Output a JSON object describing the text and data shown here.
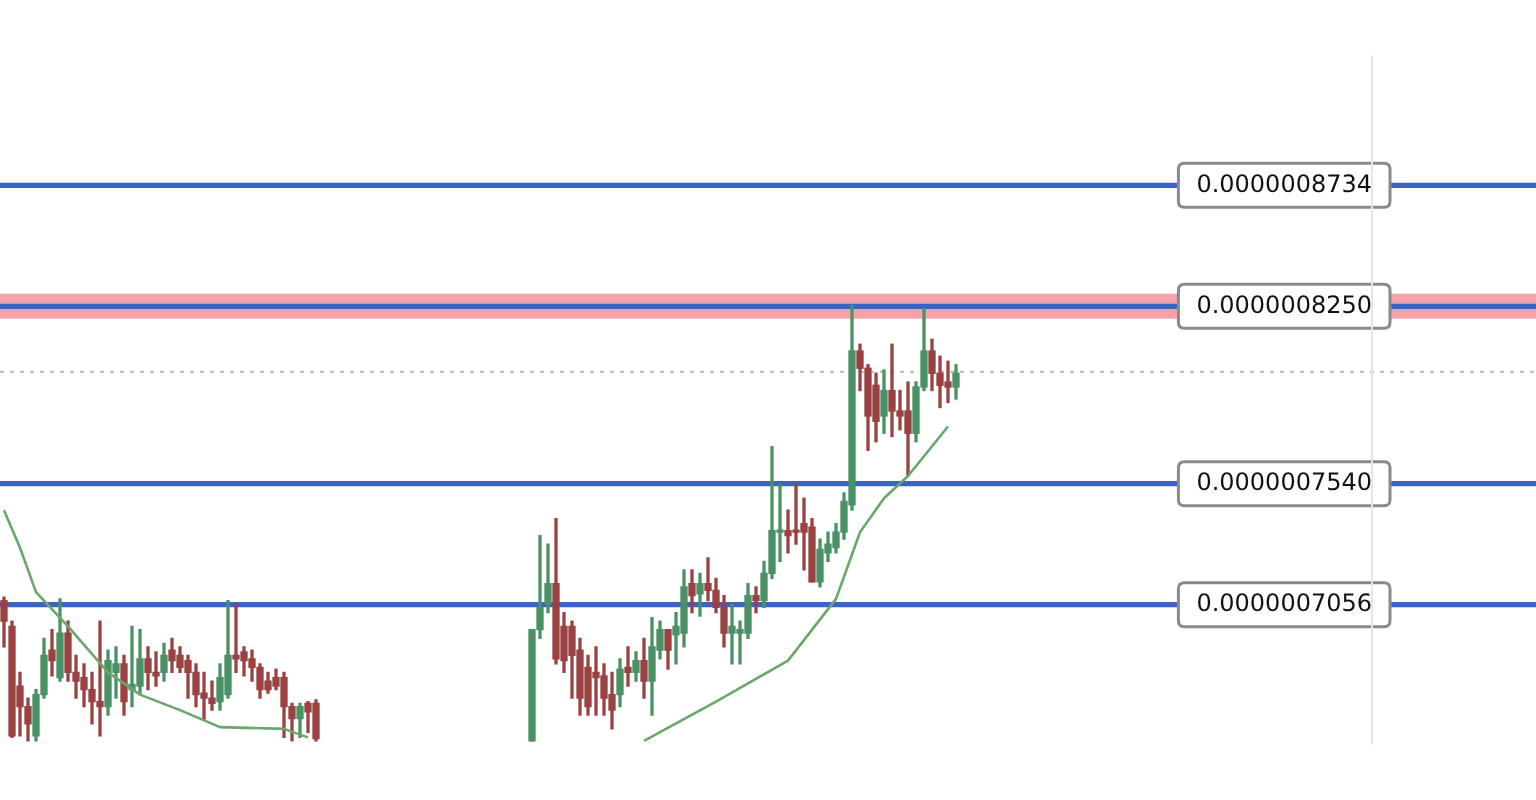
{
  "chart_data": {
    "type": "candlestick",
    "categories": [
      null,
      null,
      null,
      null,
      null,
      null,
      null,
      null,
      null,
      null,
      null,
      null,
      null,
      null,
      null,
      null,
      null,
      null,
      null,
      null,
      null,
      null,
      null,
      null,
      null,
      null,
      null,
      null,
      null,
      null,
      null,
      null,
      null,
      null,
      null,
      null,
      null,
      null,
      null,
      null,
      null,
      null,
      null,
      null,
      null,
      null,
      null,
      null,
      null,
      null,
      null,
      null,
      null,
      null,
      null,
      null,
      null,
      null,
      null,
      null,
      null,
      null,
      null,
      null,
      null,
      null,
      null,
      null,
      null,
      null,
      null,
      null,
      null,
      null,
      null,
      null,
      null,
      null,
      null,
      null,
      null,
      null,
      null,
      null,
      null,
      null,
      null,
      null,
      null,
      null,
      null,
      null,
      null,
      null,
      null,
      null,
      null,
      null,
      null,
      null,
      null,
      null,
      null,
      null,
      null,
      null,
      null,
      null,
      null,
      null,
      null,
      null,
      null,
      null,
      null,
      null,
      null,
      null,
      null,
      null,
      null,
      null,
      null,
      null,
      null,
      null,
      null,
      null,
      null,
      null,
      null,
      null,
      null,
      null,
      null,
      null,
      null,
      null,
      null,
      null,
      null,
      null,
      null,
      null,
      null,
      null,
      null,
      null,
      null,
      null,
      null,
      null,
      null,
      null,
      null,
      null,
      null,
      null,
      null,
      null,
      null,
      null,
      null,
      null,
      null,
      null,
      null,
      null,
      null,
      null,
      null,
      null,
      null,
      null,
      null,
      null,
      null,
      null,
      null,
      null,
      null,
      null,
      null,
      null,
      null,
      null,
      null,
      null,
      null,
      null,
      null,
      null
    ],
    "series": [
      {
        "type": "candlestick",
        "ohlc": [
          [
            7.072e-07,
            7.086e-07,
            6.887e-07,
            6.99e-07
          ],
          [
            6.969e-07,
            6.99e-07,
            6.525e-07,
            6.531e-07
          ],
          [
            6.73e-07,
            6.785e-07,
            6.531e-07,
            6.648e-07
          ],
          [
            6.648e-07,
            6.682e-07,
            6.511e-07,
            6.579e-07
          ],
          [
            6.531e-07,
            6.716e-07,
            6.511e-07,
            6.696e-07
          ],
          [
            6.696e-07,
            6.921e-07,
            6.682e-07,
            6.853e-07
          ],
          [
            6.874e-07,
            6.956e-07,
            6.771e-07,
            6.832e-07
          ],
          [
            6.764e-07,
            7.079e-07,
            6.75e-07,
            6.942e-07
          ],
          [
            6.942e-07,
            6.99e-07,
            6.75e-07,
            6.785e-07
          ],
          [
            6.785e-07,
            6.853e-07,
            6.682e-07,
            6.75e-07
          ],
          [
            6.764e-07,
            6.819e-07,
            6.648e-07,
            6.716e-07
          ],
          [
            6.716e-07,
            6.785e-07,
            6.579e-07,
            6.668e-07
          ],
          [
            6.668e-07,
            6.99e-07,
            6.531e-07,
            6.648e-07
          ],
          [
            6.648e-07,
            6.874e-07,
            6.614e-07,
            6.832e-07
          ],
          [
            6.785e-07,
            6.887e-07,
            6.682e-07,
            6.819e-07
          ],
          [
            6.819e-07,
            6.853e-07,
            6.614e-07,
            6.668e-07
          ],
          [
            6.716e-07,
            6.969e-07,
            6.648e-07,
            6.737e-07
          ],
          [
            6.73e-07,
            6.956e-07,
            6.702e-07,
            6.839e-07
          ],
          [
            6.839e-07,
            6.887e-07,
            6.716e-07,
            6.785e-07
          ],
          [
            6.785e-07,
            6.867e-07,
            6.73e-07,
            6.771e-07
          ],
          [
            6.785e-07,
            6.901e-07,
            6.75e-07,
            6.853e-07
          ],
          [
            6.874e-07,
            6.921e-07,
            6.785e-07,
            6.832e-07
          ],
          [
            6.853e-07,
            6.887e-07,
            6.785e-07,
            6.805e-07
          ],
          [
            6.832e-07,
            6.853e-07,
            6.682e-07,
            6.785e-07
          ],
          [
            6.785e-07,
            6.819e-07,
            6.648e-07,
            6.696e-07
          ],
          [
            6.702e-07,
            6.785e-07,
            6.593e-07,
            6.682e-07
          ],
          [
            6.682e-07,
            6.75e-07,
            6.634e-07,
            6.661e-07
          ],
          [
            6.668e-07,
            6.819e-07,
            6.634e-07,
            6.764e-07
          ],
          [
            6.696e-07,
            7.072e-07,
            6.682e-07,
            6.853e-07
          ],
          [
            6.853e-07,
            7.058e-07,
            6.785e-07,
            6.839e-07
          ],
          [
            6.867e-07,
            6.887e-07,
            6.771e-07,
            6.832e-07
          ],
          [
            6.839e-07,
            6.874e-07,
            6.75e-07,
            6.805e-07
          ],
          [
            6.805e-07,
            6.819e-07,
            6.682e-07,
            6.716e-07
          ],
          [
            6.75e-07,
            6.785e-07,
            6.702e-07,
            6.716e-07
          ],
          [
            6.764e-07,
            6.798e-07,
            6.716e-07,
            6.73e-07
          ],
          [
            6.764e-07,
            6.785e-07,
            6.525e-07,
            6.648e-07
          ],
          [
            6.648e-07,
            6.661e-07,
            6.511e-07,
            6.6e-07
          ],
          [
            6.6e-07,
            6.661e-07,
            6.525e-07,
            6.648e-07
          ],
          [
            6.661e-07,
            6.668e-07,
            6.545e-07,
            6.627e-07
          ],
          [
            6.661e-07,
            6.675e-07,
            6.511e-07,
            6.52e-07
          ],
          null,
          null,
          null,
          null,
          null,
          null,
          null,
          null,
          null,
          null,
          null,
          null,
          null,
          null,
          null,
          null,
          null,
          null,
          null,
          null,
          null,
          null,
          null,
          null,
          null,
          null,
          [
            6.511e-07,
            6.956e-07,
            6.511e-07,
            6.956e-07
          ],
          [
            6.956e-07,
            7.332e-07,
            6.921e-07,
            7.045e-07
          ],
          [
            7.058e-07,
            7.298e-07,
            7.024e-07,
            7.14e-07
          ],
          [
            7.14e-07,
            7.4e-07,
            6.819e-07,
            6.839e-07
          ],
          [
            6.969e-07,
            7.024e-07,
            6.785e-07,
            6.832e-07
          ],
          [
            6.969e-07,
            6.99e-07,
            6.682e-07,
            6.853e-07
          ],
          [
            6.874e-07,
            6.921e-07,
            6.614e-07,
            6.682e-07
          ],
          [
            6.805e-07,
            6.853e-07,
            6.614e-07,
            6.648e-07
          ],
          [
            6.785e-07,
            6.887e-07,
            6.614e-07,
            6.764e-07
          ],
          [
            6.771e-07,
            6.819e-07,
            6.614e-07,
            6.682e-07
          ],
          [
            6.696e-07,
            6.785e-07,
            6.559e-07,
            6.634e-07
          ],
          [
            6.696e-07,
            6.839e-07,
            6.648e-07,
            6.798e-07
          ],
          [
            6.805e-07,
            6.887e-07,
            6.73e-07,
            6.785e-07
          ],
          [
            6.785e-07,
            6.867e-07,
            6.75e-07,
            6.832e-07
          ],
          [
            6.832e-07,
            6.921e-07,
            6.682e-07,
            6.75e-07
          ],
          [
            6.75e-07,
            7.004e-07,
            6.614e-07,
            6.887e-07
          ],
          [
            6.874e-07,
            6.99e-07,
            6.839e-07,
            6.956e-07
          ],
          [
            6.956e-07,
            6.956e-07,
            6.798e-07,
            6.874e-07
          ],
          [
            6.935e-07,
            7.024e-07,
            6.819e-07,
            6.969e-07
          ],
          [
            6.942e-07,
            7.195e-07,
            6.887e-07,
            7.127e-07
          ],
          [
            7.14e-07,
            7.195e-07,
            7.024e-07,
            7.092e-07
          ],
          [
            7.099e-07,
            7.181e-07,
            7.01e-07,
            7.14e-07
          ],
          [
            7.14e-07,
            7.243e-07,
            7.072e-07,
            7.113e-07
          ],
          [
            7.113e-07,
            7.161e-07,
            7.024e-07,
            7.045e-07
          ],
          [
            7.045e-07,
            7.092e-07,
            6.887e-07,
            6.942e-07
          ],
          [
            6.942e-07,
            7.058e-07,
            6.819e-07,
            6.969e-07
          ],
          [
            6.942e-07,
            6.99e-07,
            6.819e-07,
            6.956e-07
          ],
          [
            6.942e-07,
            7.14e-07,
            6.921e-07,
            7.092e-07
          ],
          [
            7.092e-07,
            7.127e-07,
            7.024e-07,
            7.072e-07
          ],
          [
            7.072e-07,
            7.229e-07,
            7.045e-07,
            7.181e-07
          ],
          [
            7.181e-07,
            7.688e-07,
            7.161e-07,
            7.352e-07
          ],
          [
            7.346e-07,
            7.537e-07,
            7.229e-07,
            7.352e-07
          ],
          [
            7.352e-07,
            7.434e-07,
            7.263e-07,
            7.332e-07
          ],
          [
            7.352e-07,
            7.537e-07,
            7.298e-07,
            7.346e-07
          ],
          [
            7.38e-07,
            7.482e-07,
            7.195e-07,
            7.346e-07
          ],
          [
            7.366e-07,
            7.4e-07,
            7.147e-07,
            7.147e-07
          ],
          [
            7.147e-07,
            7.318e-07,
            7.127e-07,
            7.277e-07
          ],
          [
            7.263e-07,
            7.346e-07,
            7.229e-07,
            7.298e-07
          ],
          [
            7.284e-07,
            7.38e-07,
            7.263e-07,
            7.346e-07
          ],
          [
            7.346e-07,
            7.503e-07,
            7.318e-07,
            7.469e-07
          ],
          [
            7.455e-07,
            8.255e-07,
            7.434e-07,
            8.071e-07
          ],
          [
            8.071e-07,
            8.098e-07,
            7.913e-07,
            8.002e-07
          ],
          [
            8.002e-07,
            8.016e-07,
            7.674e-07,
            7.811e-07
          ],
          [
            7.934e-07,
            7.982e-07,
            7.708e-07,
            7.79e-07
          ],
          [
            7.811e-07,
            7.995e-07,
            7.742e-07,
            7.913e-07
          ],
          [
            7.913e-07,
            8.098e-07,
            7.729e-07,
            7.831e-07
          ],
          [
            7.831e-07,
            7.913e-07,
            7.756e-07,
            7.811e-07
          ],
          [
            7.831e-07,
            7.947e-07,
            7.571e-07,
            7.742e-07
          ],
          [
            7.742e-07,
            7.947e-07,
            7.708e-07,
            7.927e-07
          ],
          [
            7.927e-07,
            8.242e-07,
            7.913e-07,
            8.071e-07
          ],
          [
            8.071e-07,
            8.118e-07,
            7.913e-07,
            7.982e-07
          ],
          [
            7.982e-07,
            8.05e-07,
            7.845e-07,
            7.934e-07
          ],
          [
            7.947e-07,
            8.03e-07,
            7.865e-07,
            7.927e-07
          ],
          [
            7.927e-07,
            8.016e-07,
            7.879e-07,
            7.982e-07
          ],
          null,
          null,
          null,
          null,
          null,
          null,
          null,
          null,
          null,
          null,
          null,
          null,
          null,
          null,
          null,
          null,
          null,
          null,
          null,
          null,
          null,
          null,
          null,
          null,
          null,
          null,
          null,
          null,
          null,
          null,
          null,
          null,
          null,
          null,
          null,
          null,
          null,
          null,
          null,
          null,
          null,
          null,
          null,
          null,
          null,
          null,
          null,
          null,
          null,
          null,
          null,
          null,
          null,
          null,
          null,
          null,
          null,
          null,
          null,
          null,
          null,
          null,
          null,
          null,
          null,
          null,
          null,
          null,
          null,
          null,
          null,
          null
        ],
        "colors": [
          "#9a4141",
          "#9a4141",
          "#9a4141",
          "#9a4141",
          "#4a9166",
          "#4a9166",
          "#9a4141",
          "#4a9166",
          "#9a4141",
          "#9a4141",
          "#9a4141",
          "#9a4141",
          "#9a4141",
          "#4a9166",
          "#4a9166",
          "#9a4141",
          "#4a9166",
          "#4a9166",
          "#9a4141",
          "#9a4141",
          "#4a9166",
          "#9a4141",
          "#9a4141",
          "#9a4141",
          "#9a4141",
          "#9a4141",
          "#9a4141",
          "#4a9166",
          "#4a9166",
          "#9a4141",
          "#9a4141",
          "#9a4141",
          "#9a4141",
          "#9a4141",
          "#9a4141",
          "#9a4141",
          "#9a4141",
          "#4a9166",
          "#9a4141",
          "#9a4141",
          null,
          null,
          null,
          null,
          null,
          null,
          null,
          null,
          null,
          null,
          null,
          null,
          null,
          null,
          null,
          null,
          null,
          null,
          null,
          null,
          null,
          null,
          null,
          null,
          null,
          null,
          "#4a9166",
          "#4a9166",
          "#4a9166",
          "#9a4141",
          "#9a4141",
          "#9a4141",
          "#9a4141",
          "#9a4141",
          "#9a4141",
          "#9a4141",
          "#9a4141",
          "#4a9166",
          "#9a4141",
          "#4a9166",
          "#9a4141",
          "#4a9166",
          "#4a9166",
          "#9a4141",
          "#4a9166",
          "#4a9166",
          "#9a4141",
          "#4a9166",
          "#9a4141",
          "#9a4141",
          "#9a4141",
          "#4a9166",
          "#4a9166",
          "#4a9166",
          "#9a4141",
          "#4a9166",
          "#4a9166",
          "#4a9166",
          "#9a4141",
          "#9a4141",
          "#9a4141",
          "#9a4141",
          "#4a9166",
          "#4a9166",
          "#4a9166",
          "#4a9166",
          "#4a9166",
          "#9a4141",
          "#9a4141",
          "#9a4141",
          "#4a9166",
          "#9a4141",
          "#9a4141",
          "#9a4141",
          "#4a9166",
          "#4a9166",
          "#9a4141",
          "#9a4141",
          "#9a4141",
          "#4a9166",
          null,
          null,
          null,
          null,
          null,
          null,
          null,
          null,
          null,
          null,
          null,
          null,
          null,
          null,
          null,
          null,
          null,
          null,
          null,
          null,
          null,
          null,
          null,
          null,
          null,
          null,
          null,
          null,
          null,
          null,
          null,
          null,
          null,
          null,
          null,
          null,
          null,
          null,
          null,
          null,
          null,
          null,
          null,
          null,
          null,
          null,
          null,
          null,
          null,
          null,
          null,
          null,
          null,
          null,
          null,
          null,
          null,
          null,
          null,
          null,
          null,
          null,
          null,
          null,
          null,
          null,
          null,
          null,
          null,
          null,
          null,
          null
        ]
      },
      {
        "type": "line",
        "color": "#6aa86a",
        "marker": "none",
        "values": [
          7.434e-07,
          null,
          7.284e-07,
          null,
          7.106e-07,
          null,
          null,
          null,
          6.969e-07,
          null,
          null,
          null,
          null,
          6.785e-07,
          null,
          null,
          null,
          6.696e-07,
          null,
          null,
          null,
          null,
          6.634e-07,
          null,
          null,
          null,
          null,
          6.566e-07,
          null,
          null,
          null,
          null,
          null,
          null,
          null,
          6.559e-07,
          null,
          null,
          6.525e-07,
          null,
          null,
          null,
          null,
          null,
          null,
          null,
          null,
          null,
          null,
          null,
          null,
          null,
          null,
          null,
          null,
          null,
          null,
          null,
          null,
          null,
          null,
          null,
          null,
          null,
          null,
          null,
          null,
          null,
          null,
          null,
          null,
          null,
          null,
          null,
          null,
          null,
          null,
          null,
          null,
          null,
          6.511e-07,
          null,
          null,
          null,
          null,
          null,
          null,
          null,
          null,
          6.668e-07,
          null,
          null,
          null,
          null,
          null,
          null,
          null,
          null,
          6.832e-07,
          null,
          null,
          null,
          null,
          null,
          7.079e-07,
          null,
          null,
          7.346e-07,
          null,
          null,
          7.482e-07,
          null,
          null,
          7.571e-07,
          null,
          null,
          null,
          null,
          7.769e-07,
          null,
          null,
          null,
          null,
          null,
          null,
          null,
          null,
          null,
          null,
          null,
          null,
          null,
          null,
          null,
          null,
          null,
          null,
          null,
          null,
          null,
          null,
          null,
          null,
          null,
          null,
          null,
          null,
          null,
          null,
          null,
          null,
          null,
          null,
          null,
          null,
          null,
          null,
          null,
          null,
          null,
          null,
          null,
          null,
          null,
          null,
          null,
          null,
          null,
          null,
          null,
          null,
          null,
          null,
          null,
          null,
          null,
          null,
          null,
          null,
          null,
          null,
          null,
          null,
          null,
          null,
          null,
          null,
          null,
          null,
          null,
          null,
          null
        ]
      }
    ],
    "ylim": [
      6.5e-07,
      9.25e-07
    ],
    "yticks": [
      {
        "value": 7.056e-07,
        "label": "0.0000007056"
      },
      {
        "value": 7.54e-07,
        "label": "0.0000007540"
      },
      {
        "value": 8.25e-07,
        "label": "0.0000008250"
      },
      {
        "value": 8.734e-07,
        "label": "0.0000008734"
      }
    ],
    "tick_labels": "y",
    "ref_lines": [
      {
        "axis": "y",
        "value": 8.734e-07,
        "color": "#3a63c4"
      },
      {
        "axis": "y",
        "value": 8.25e-07,
        "color": "#3a63c4"
      },
      {
        "axis": "y",
        "value": 7.54e-07,
        "color": "#3a63c4"
      },
      {
        "axis": "y",
        "value": 7.056e-07,
        "color": "#3a63c4"
      },
      {
        "axis": "y",
        "value": 7.988e-07,
        "color": "#b8b8b8",
        "line_style": "dotted"
      }
    ],
    "bands": [
      {
        "axis": "y",
        "from": 8.2e-07,
        "to": 8.3e-07,
        "color": "#f4a3aa"
      }
    ]
  }
}
